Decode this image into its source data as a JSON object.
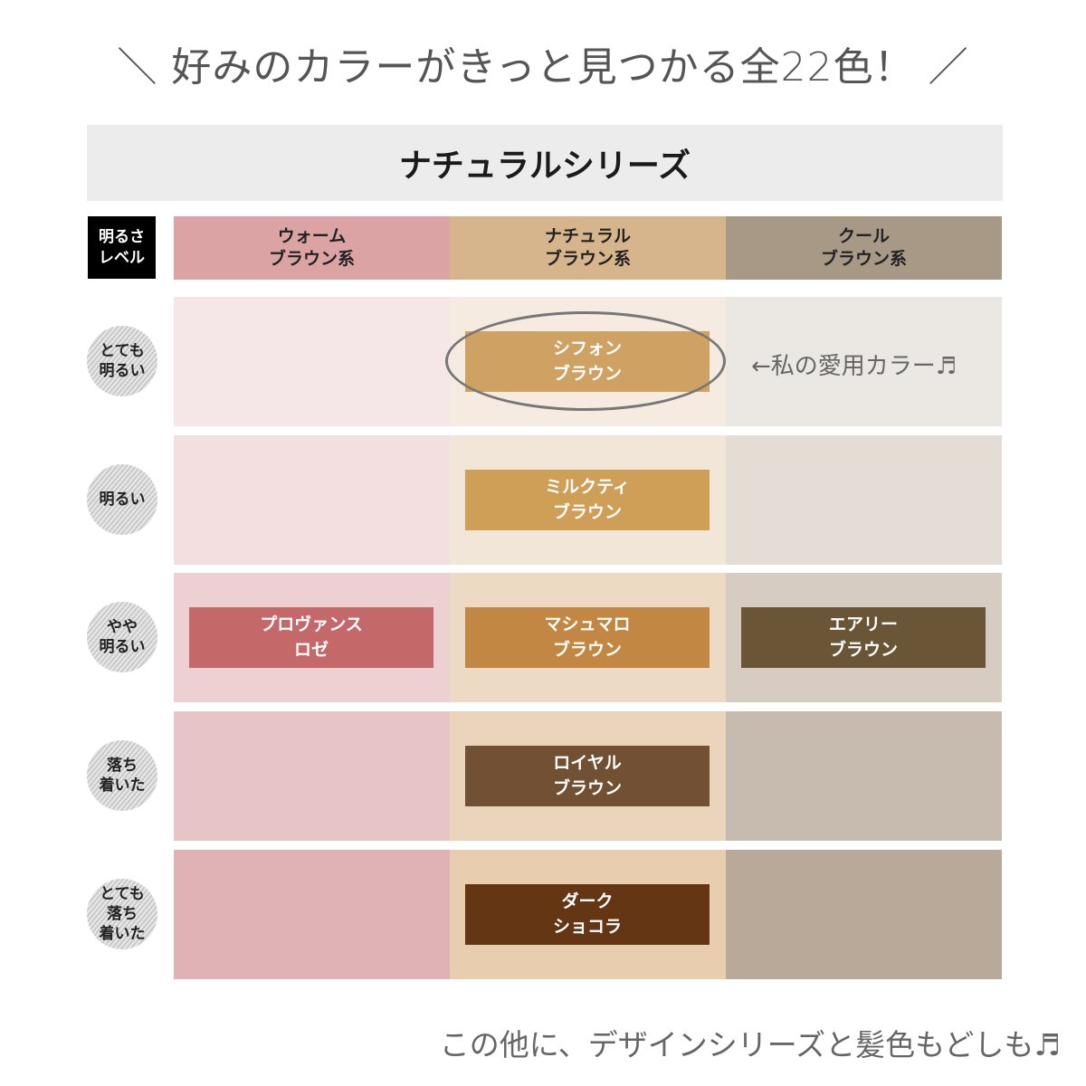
{
  "headline": "＼ 好みのカラーがきっと見つかる全22色！ ／",
  "series_title": "ナチュラルシリーズ",
  "level_header": "明るさ\nレベル",
  "columns": [
    {
      "label": "ウォーム\nブラウン系",
      "color": "#dca3a4"
    },
    {
      "label": "ナチュラル\nブラウン系",
      "color": "#d7b58c"
    },
    {
      "label": "クール\nブラウン系",
      "color": "#a89886"
    }
  ],
  "rows": [
    {
      "level": "とても\n明るい",
      "bg": [
        "#f5e7e7",
        "#f5ebe0",
        "#ebe7e2"
      ],
      "swatches": [
        null,
        {
          "name": "シフォン\nブラウン",
          "color": "#cfa163"
        },
        null
      ]
    },
    {
      "level": "明るい",
      "bg": [
        "#f3dfe0",
        "#f2e6d8",
        "#e3ddd6"
      ],
      "swatches": [
        null,
        {
          "name": "ミルクティ\nブラウン",
          "color": "#cf9f58"
        },
        null
      ]
    },
    {
      "level": "やや\n明るい",
      "bg": [
        "#edd1d2",
        "#ecdac4",
        "#d7ccc2"
      ],
      "swatches": [
        {
          "name": "プロヴァンス\nロゼ",
          "color": "#c5686a"
        },
        {
          "name": "マシュマロ\nブラウン",
          "color": "#c28843"
        },
        {
          "name": "エアリー\nブラウン",
          "color": "#6b5537"
        }
      ]
    },
    {
      "level": "落ち\n着いた",
      "bg": [
        "#e7c4c5",
        "#ead5bc",
        "#c6bbae"
      ],
      "swatches": [
        null,
        {
          "name": "ロイヤル\nブラウン",
          "color": "#715033"
        },
        null
      ]
    },
    {
      "level": "とても\n落ち\n着いた",
      "bg": [
        "#e1b2b5",
        "#e8cdaf",
        "#b8a998"
      ],
      "swatches": [
        null,
        {
          "name": "ダーク\nショコラ",
          "color": "#653614"
        },
        null
      ]
    }
  ],
  "favorite_note": "←私の愛用カラー♬",
  "footer": "この他に、デザインシリーズと髪色もどしも♬"
}
